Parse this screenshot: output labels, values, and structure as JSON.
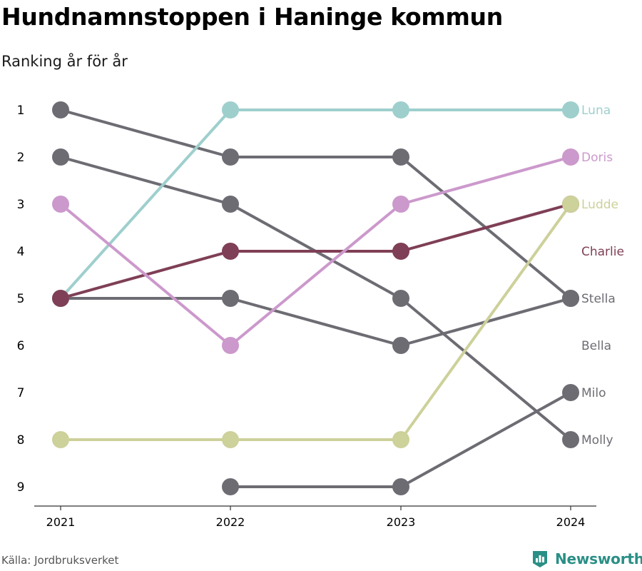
{
  "title": "Hundnamnstoppen i Haninge kommun",
  "subtitle": "Ranking år för år",
  "source": "Källa: Jordbruksverket",
  "brand": "Newsworthy",
  "colors": {
    "gray": "#6d6c73",
    "luna": "#9ecfcd",
    "doris": "#cc99cc",
    "ludde": "#cdd19a",
    "charlie": "#7f3f56",
    "axis": "#333333",
    "brand": "#2a8f86"
  },
  "chart_data": {
    "type": "line",
    "x": [
      "2021",
      "2022",
      "2023",
      "2024"
    ],
    "y_ticks": [
      1,
      2,
      3,
      4,
      5,
      6,
      7,
      8,
      9
    ],
    "y_reversed": true,
    "grid": false,
    "series": [
      {
        "name": "Stella",
        "values": [
          1,
          2,
          2,
          5
        ],
        "color": "#6d6c73"
      },
      {
        "name": "Molly",
        "values": [
          2,
          3,
          5,
          8
        ],
        "color": "#6d6c73"
      },
      {
        "name": "Bella",
        "values": [
          5,
          5,
          6,
          5
        ],
        "color": "#6d6c73"
      },
      {
        "name": "Milo",
        "values": [
          null,
          9,
          9,
          7
        ],
        "color": "#6d6c73"
      },
      {
        "name": "Luna",
        "values": [
          5,
          1,
          1,
          1
        ],
        "color": "#9ecfcd"
      },
      {
        "name": "Charlie",
        "values": [
          5,
          4,
          4,
          3
        ],
        "color": "#7f3f56"
      },
      {
        "name": "Doris",
        "values": [
          3,
          6,
          3,
          2
        ],
        "color": "#cc99cc"
      },
      {
        "name": "Ludde",
        "values": [
          8,
          8,
          8,
          3
        ],
        "color": "#cdd19a"
      }
    ],
    "end_labels": [
      {
        "text": "Luna",
        "rank": 1,
        "color": "#9ecfcd"
      },
      {
        "text": "Doris",
        "rank": 2,
        "color": "#cc99cc"
      },
      {
        "text": "Ludde",
        "rank": 3,
        "color": "#cdd19a"
      },
      {
        "text": "Charlie",
        "rank": 4,
        "color": "#7f3f56"
      },
      {
        "text": "Stella",
        "rank": 5,
        "color": "#6d6c73"
      },
      {
        "text": "Bella",
        "rank": 6,
        "color": "#6d6c73"
      },
      {
        "text": "Milo",
        "rank": 7,
        "color": "#6d6c73"
      },
      {
        "text": "Molly",
        "rank": 8,
        "color": "#6d6c73"
      }
    ]
  }
}
